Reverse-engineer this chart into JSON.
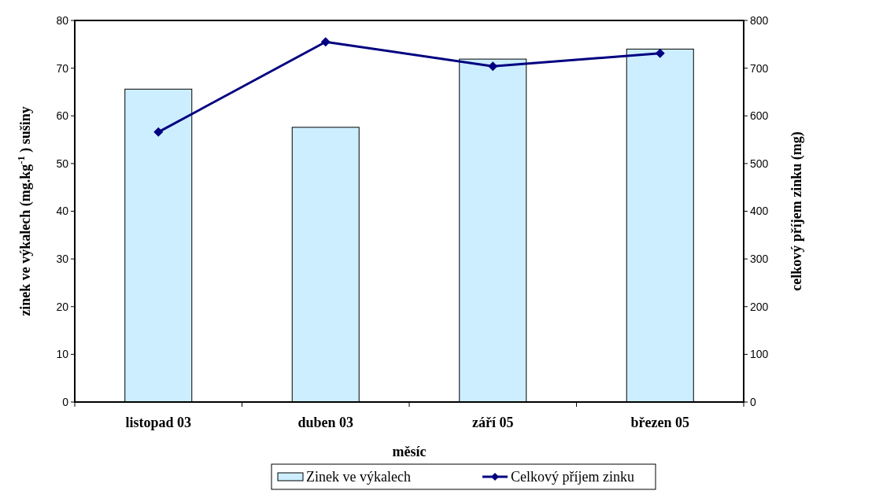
{
  "chart_data": {
    "type": "bar",
    "xlabel": "měsíc",
    "ylabel": "zinek ve výkalech (mg.kg$^{-1}$ ) sušiny",
    "y2label": "celkový příjem zinku  (mg)",
    "categories": [
      "listopad 03",
      "duben 03",
      "září 05",
      "březen 05"
    ],
    "series": [
      {
        "name": "Zinek ve výkalech",
        "color": "#cceeff",
        "values": [
          65.6,
          57.6,
          71.9,
          74.0
        ]
      },
      {
        "name": "Celkový příjem zinku",
        "type": "line",
        "axis": "y2",
        "color": "#000080",
        "marker": "diamond",
        "values": [
          566,
          755,
          704,
          731
        ]
      }
    ],
    "ylim": [
      0,
      80
    ],
    "yticks": [
      0,
      10,
      20,
      30,
      40,
      50,
      60,
      70,
      80
    ],
    "y2lim": [
      0,
      800
    ],
    "y2ticks": [
      0,
      100,
      200,
      300,
      400,
      500,
      600,
      700,
      800
    ],
    "grid": false,
    "legend": "bottom"
  }
}
